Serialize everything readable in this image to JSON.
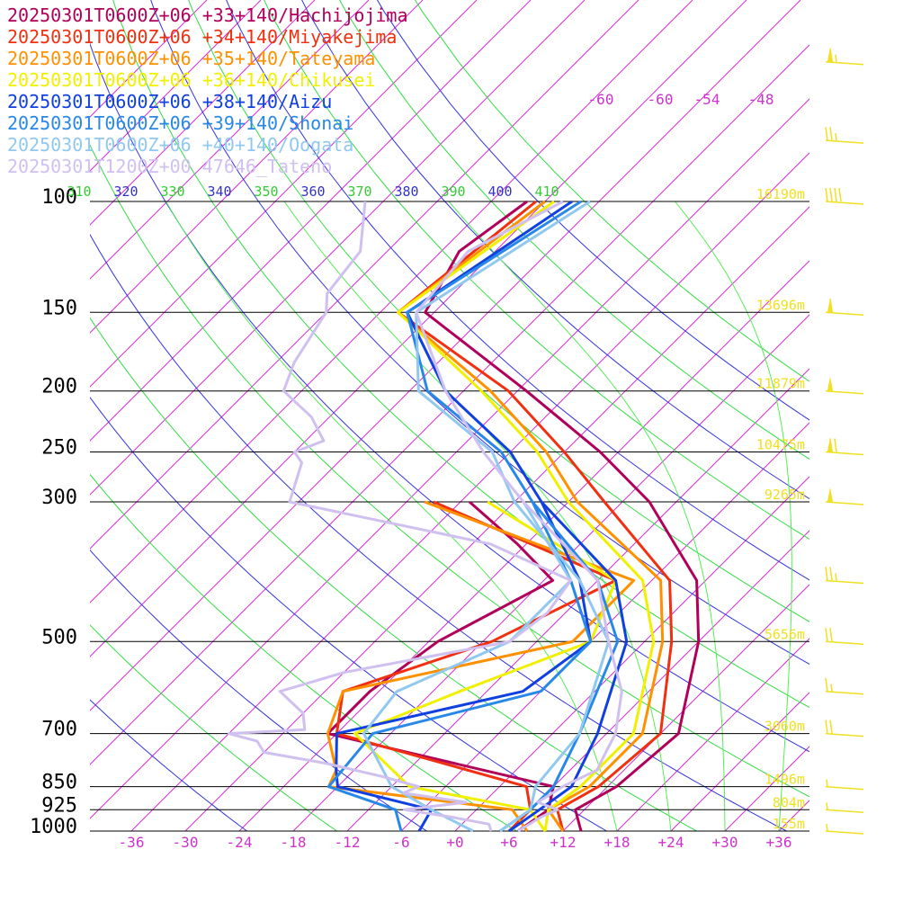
{
  "chart_data": {
    "type": "line",
    "title": "",
    "pressure_levels": [
      100,
      150,
      200,
      250,
      300,
      500,
      700,
      850,
      925,
      1000
    ],
    "height_labels": [
      {
        "p": 100,
        "text": "16190m"
      },
      {
        "p": 150,
        "text": "13696m"
      },
      {
        "p": 200,
        "text": "11879m"
      },
      {
        "p": 250,
        "text": "10475m"
      },
      {
        "p": 300,
        "text": "9265m"
      },
      {
        "p": 500,
        "text": "5656m"
      },
      {
        "p": 700,
        "text": "3060m"
      },
      {
        "p": 850,
        "text": "1496m"
      },
      {
        "p": 925,
        "text": "804m"
      },
      {
        "p": 1000,
        "text": "155m"
      }
    ],
    "temperature_ticks": [
      "-36",
      "-30",
      "-24",
      "-18",
      "-12",
      "-6",
      "+0",
      "+6",
      "+12",
      "+18",
      "+24",
      "+30",
      "+36"
    ],
    "temperature_tick_values": [
      -36,
      -30,
      -24,
      -18,
      -12,
      -6,
      0,
      6,
      12,
      18,
      24,
      30,
      36
    ],
    "upper_isotherm_labels": [
      "-60",
      "-60",
      "-54",
      "-48"
    ],
    "theta_labels": [
      "310",
      "320",
      "330",
      "340",
      "350",
      "360",
      "370",
      "380",
      "390",
      "400",
      "410"
    ],
    "series": [
      {
        "name": "20250301T0600Z+06 +33+140/Hachijojima",
        "color": "#b0005a",
        "temp": [
          [
            1000,
            14
          ],
          [
            925,
            11
          ],
          [
            850,
            13
          ],
          [
            700,
            14
          ],
          [
            500,
            6
          ],
          [
            400,
            -1
          ],
          [
            300,
            -15
          ],
          [
            250,
            -26
          ],
          [
            200,
            -41
          ],
          [
            150,
            -61
          ],
          [
            120,
            -64
          ],
          [
            100,
            -62
          ]
        ],
        "dew": [
          [
            1000,
            7
          ],
          [
            925,
            8
          ],
          [
            850,
            6
          ],
          [
            700,
            -25
          ],
          [
            600,
            -25
          ],
          [
            500,
            -23
          ],
          [
            400,
            -17
          ],
          [
            350,
            -25
          ],
          [
            300,
            -35
          ]
        ]
      },
      {
        "name": "20250301T0600Z+06 +34+140/Miyakejima",
        "color": "#f03010",
        "temp": [
          [
            1000,
            12
          ],
          [
            925,
            9
          ],
          [
            850,
            11
          ],
          [
            700,
            12
          ],
          [
            500,
            3
          ],
          [
            400,
            -4
          ],
          [
            300,
            -20
          ],
          [
            250,
            -30
          ],
          [
            200,
            -43
          ],
          [
            150,
            -64
          ],
          [
            100,
            -61
          ]
        ],
        "dew": [
          [
            1000,
            6
          ],
          [
            925,
            6
          ],
          [
            850,
            3
          ],
          [
            700,
            -24
          ],
          [
            600,
            -28
          ],
          [
            500,
            -17
          ],
          [
            400,
            -10
          ],
          [
            300,
            -39
          ]
        ]
      },
      {
        "name": "20250301T0600Z+06 +35+140/Tateyama",
        "color": "#ff9000",
        "temp": [
          [
            1000,
            12
          ],
          [
            925,
            8
          ],
          [
            850,
            10
          ],
          [
            700,
            10
          ],
          [
            500,
            2
          ],
          [
            400,
            -5
          ],
          [
            300,
            -23
          ],
          [
            250,
            -32
          ],
          [
            200,
            -45
          ],
          [
            150,
            -64
          ],
          [
            100,
            -60
          ]
        ],
        "dew": [
          [
            1000,
            8
          ],
          [
            925,
            4
          ],
          [
            850,
            -19
          ],
          [
            800,
            -20
          ],
          [
            700,
            -25
          ],
          [
            600,
            -28
          ],
          [
            500,
            -8
          ],
          [
            400,
            -8
          ],
          [
            300,
            -40
          ]
        ]
      },
      {
        "name": "20250301T0600Z+06 +36+140/Chikusei",
        "color": "#f0f000",
        "temp": [
          [
            1000,
            10
          ],
          [
            925,
            8
          ],
          [
            850,
            9
          ],
          [
            700,
            9
          ],
          [
            500,
            1
          ],
          [
            400,
            -7
          ],
          [
            300,
            -24
          ],
          [
            250,
            -33
          ],
          [
            200,
            -46
          ],
          [
            150,
            -64
          ],
          [
            100,
            -59
          ]
        ],
        "dew": [
          [
            1000,
            10
          ],
          [
            925,
            6
          ],
          [
            850,
            -10
          ],
          [
            700,
            -22
          ],
          [
            600,
            -15
          ],
          [
            500,
            -6
          ],
          [
            400,
            -10
          ],
          [
            300,
            -33
          ]
        ]
      },
      {
        "name": "20250301T0600Z+06 +38+140/Aizu",
        "color": "#1040e0",
        "temp": [
          [
            1000,
            6
          ],
          [
            925,
            7
          ],
          [
            850,
            8
          ],
          [
            700,
            5
          ],
          [
            500,
            -2
          ],
          [
            400,
            -10
          ],
          [
            300,
            -27
          ],
          [
            250,
            -36
          ],
          [
            200,
            -50
          ],
          [
            150,
            -63
          ],
          [
            100,
            -57
          ]
        ],
        "dew": [
          [
            1000,
            -4
          ],
          [
            925,
            -5
          ],
          [
            850,
            -18
          ],
          [
            800,
            -20
          ],
          [
            700,
            -24
          ],
          [
            600,
            -8
          ],
          [
            500,
            -6
          ],
          [
            400,
            -14
          ],
          [
            300,
            -27
          ]
        ]
      },
      {
        "name": "20250301T0600Z+06 +39+140/Shonai",
        "color": "#2888e8",
        "temp": [
          [
            1000,
            5
          ],
          [
            925,
            6
          ],
          [
            850,
            6
          ],
          [
            700,
            3
          ],
          [
            500,
            -3
          ],
          [
            400,
            -12
          ],
          [
            300,
            -28
          ],
          [
            250,
            -37
          ],
          [
            200,
            -52
          ],
          [
            150,
            -63
          ],
          [
            100,
            -56
          ]
        ],
        "dew": [
          [
            1000,
            -6
          ],
          [
            925,
            -9
          ],
          [
            850,
            -19
          ],
          [
            700,
            -20
          ],
          [
            600,
            -6
          ],
          [
            500,
            -6
          ],
          [
            400,
            -15
          ],
          [
            300,
            -28
          ]
        ]
      },
      {
        "name": "20250301T0600Z+06 +40+140/Oogata",
        "color": "#90c8f0",
        "temp": [
          [
            1000,
            5
          ],
          [
            925,
            6
          ],
          [
            850,
            4
          ],
          [
            700,
            3
          ],
          [
            500,
            -4
          ],
          [
            400,
            -14
          ],
          [
            300,
            -30
          ],
          [
            250,
            -38
          ],
          [
            200,
            -53
          ],
          [
            150,
            -62
          ],
          [
            100,
            -55
          ]
        ],
        "dew": [
          [
            1000,
            2
          ],
          [
            925,
            -5
          ],
          [
            850,
            -12
          ],
          [
            700,
            -21
          ],
          [
            600,
            -22
          ],
          [
            500,
            -15
          ],
          [
            400,
            -15
          ],
          [
            300,
            -29
          ]
        ]
      },
      {
        "name": "20250301T1200Z+00 47646_Tateno",
        "color": "#d0c0f0",
        "temp": [
          [
            1000,
            7
          ],
          [
            950,
            8
          ],
          [
            925,
            9
          ],
          [
            900,
            6
          ],
          [
            850,
            7
          ],
          [
            800,
            9
          ],
          [
            750,
            8
          ],
          [
            700,
            7
          ],
          [
            600,
            3
          ],
          [
            500,
            -4
          ],
          [
            400,
            -12
          ],
          [
            300,
            -29
          ],
          [
            250,
            -39
          ],
          [
            200,
            -50
          ],
          [
            150,
            -62
          ],
          [
            120,
            -63
          ],
          [
            100,
            -58
          ]
        ],
        "dew": [
          [
            1000,
            4
          ],
          [
            975,
            3
          ],
          [
            950,
            -2
          ],
          [
            925,
            -8
          ],
          [
            900,
            -2
          ],
          [
            870,
            -10
          ],
          [
            850,
            -9
          ],
          [
            820,
            -14
          ],
          [
            780,
            -22
          ],
          [
            750,
            -30
          ],
          [
            720,
            -32
          ],
          [
            700,
            -36
          ],
          [
            690,
            -28
          ],
          [
            650,
            -30
          ],
          [
            600,
            -35
          ],
          [
            560,
            -30
          ],
          [
            500,
            -15
          ],
          [
            450,
            -14
          ],
          [
            400,
            -15
          ],
          [
            350,
            -28
          ],
          [
            300,
            -55
          ],
          [
            260,
            -58
          ],
          [
            250,
            -60
          ],
          [
            240,
            -58
          ],
          [
            220,
            -62
          ],
          [
            200,
            -68
          ],
          [
            180,
            -70
          ],
          [
            150,
            -72
          ],
          [
            140,
            -74
          ],
          [
            120,
            -75
          ],
          [
            100,
            -80
          ]
        ]
      }
    ],
    "wind_barbs": [
      {
        "p": 60,
        "dir": 250,
        "speed": 65
      },
      {
        "p": 80,
        "dir": 255,
        "speed": 25
      },
      {
        "p": 100,
        "dir": 260,
        "speed": 40
      },
      {
        "p": 150,
        "dir": 265,
        "speed": 60
      },
      {
        "p": 200,
        "dir": 265,
        "speed": 55
      },
      {
        "p": 250,
        "dir": 265,
        "speed": 70
      },
      {
        "p": 300,
        "dir": 265,
        "speed": 50
      },
      {
        "p": 400,
        "dir": 265,
        "speed": 25
      },
      {
        "p": 500,
        "dir": 270,
        "speed": 20
      },
      {
        "p": 600,
        "dir": 270,
        "speed": 15
      },
      {
        "p": 700,
        "dir": 265,
        "speed": 20
      },
      {
        "p": 850,
        "dir": 230,
        "speed": 5
      },
      {
        "p": 925,
        "dir": 200,
        "speed": 5
      },
      {
        "p": 1000,
        "dir": 180,
        "speed": 5
      }
    ],
    "xlim": [
      -40,
      40
    ],
    "ylim": [
      1000,
      100
    ],
    "yscale": "log"
  }
}
